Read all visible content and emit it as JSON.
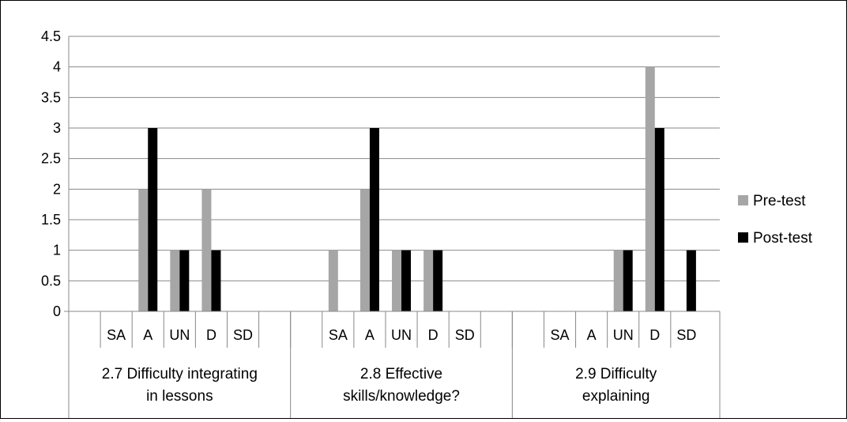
{
  "chart_data": {
    "type": "bar",
    "title": "",
    "xlabel": "",
    "ylabel": "",
    "ylim": [
      0,
      4.5
    ],
    "yticks": [
      "0",
      "0.5",
      "1",
      "1.5",
      "2",
      "2.5",
      "3",
      "3.5",
      "4",
      "4.5"
    ],
    "grid": true,
    "legend_position": "right",
    "groups": [
      {
        "label": "2.7 Difficulty integrating in lessons",
        "label_lines": [
          "2.7 Difficulty integrating",
          "in lessons"
        ],
        "categories": [
          "",
          "SA",
          "A",
          "UN",
          "D",
          "SD",
          ""
        ]
      },
      {
        "label": "2.8 Effective skills/knowledge?",
        "label_lines": [
          "2.8 Effective",
          "skills/knowledge?"
        ],
        "categories": [
          "",
          "SA",
          "A",
          "UN",
          "D",
          "SD",
          ""
        ]
      },
      {
        "label": "2.9 Difficulty explaining",
        "label_lines": [
          "2.9 Difficulty",
          "explaining"
        ],
        "categories": [
          "",
          "SA",
          "A",
          "UN",
          "D",
          "SD"
        ]
      }
    ],
    "series": [
      {
        "name": "Pre-test",
        "color": "#a6a6a6",
        "values": [
          [
            0,
            0,
            2,
            1,
            2,
            0,
            0
          ],
          [
            0,
            1,
            2,
            1,
            1,
            0,
            0
          ],
          [
            0,
            0,
            0,
            1,
            4,
            0
          ]
        ]
      },
      {
        "name": "Post-test",
        "color": "#000000",
        "values": [
          [
            0,
            0,
            3,
            1,
            1,
            0,
            0
          ],
          [
            0,
            0,
            3,
            1,
            1,
            0,
            0
          ],
          [
            0,
            0,
            0,
            1,
            3,
            1
          ]
        ]
      }
    ]
  }
}
